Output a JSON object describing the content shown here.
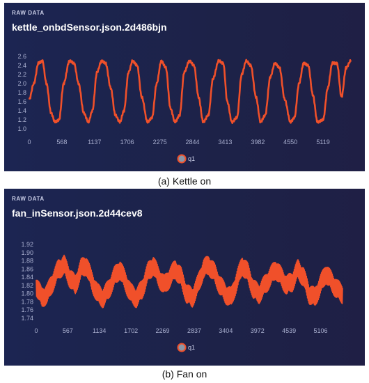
{
  "chart_data": [
    {
      "type": "line",
      "panel_label": "RAW DATA",
      "title": "kettle_onbdSensor.json.2d486bjn",
      "caption": "(a) Kettle on",
      "x_ticks": [
        "0",
        "568",
        "1137",
        "1706",
        "2275",
        "2844",
        "3413",
        "3982",
        "4550",
        "5119"
      ],
      "y_ticks": [
        "2.6",
        "2.4",
        "2.2",
        "2.0",
        "1.8",
        "1.6",
        "1.4",
        "1.2",
        "1.0"
      ],
      "xlim": [
        0,
        5700
      ],
      "ylim": [
        1.0,
        2.6
      ],
      "grid": false,
      "legend_position": "bottom-center",
      "line_color": "#f0502a",
      "series": [
        {
          "name": "q1",
          "x": [
            0,
            80,
            160,
            230,
            300,
            380,
            450,
            520,
            600,
            700,
            780,
            860,
            950,
            1030,
            1100,
            1180,
            1260,
            1330,
            1420,
            1500,
            1580,
            1650,
            1730,
            1800,
            1880,
            1960,
            2060,
            2140,
            2220,
            2300,
            2380,
            2460,
            2540,
            2620,
            2700,
            2790,
            2870,
            2950,
            3030,
            3120,
            3200,
            3300,
            3380,
            3450,
            3530,
            3620,
            3700,
            3780,
            3860,
            3950,
            4030,
            4110,
            4200,
            4280,
            4360,
            4450,
            4550,
            4620,
            4700,
            4780,
            4860,
            4940,
            5020,
            5120,
            5200,
            5280,
            5360,
            5440,
            5520,
            5600
          ],
          "y": [
            1.65,
            2.0,
            2.45,
            2.5,
            2.0,
            1.35,
            1.15,
            1.2,
            2.0,
            2.5,
            2.45,
            2.0,
            1.35,
            1.15,
            1.4,
            2.25,
            2.5,
            2.45,
            1.9,
            1.3,
            1.15,
            1.4,
            2.25,
            2.5,
            2.4,
            1.7,
            1.15,
            1.25,
            2.0,
            2.5,
            2.35,
            1.45,
            1.15,
            1.3,
            2.25,
            2.5,
            2.4,
            1.7,
            1.15,
            1.3,
            2.1,
            2.5,
            2.45,
            1.6,
            1.15,
            1.25,
            2.2,
            2.5,
            2.4,
            1.7,
            1.15,
            1.3,
            2.15,
            2.45,
            2.35,
            1.65,
            1.15,
            1.25,
            2.0,
            2.45,
            2.4,
            1.75,
            1.15,
            1.2,
            1.9,
            2.45,
            2.45,
            1.7,
            2.35,
            2.5
          ]
        }
      ]
    },
    {
      "type": "line",
      "panel_label": "RAW DATA",
      "title": "fan_inSensor.json.2d44cev8",
      "caption": "(b) Fan on",
      "x_ticks": [
        "0",
        "567",
        "1134",
        "1702",
        "2269",
        "2837",
        "3404",
        "3972",
        "4539",
        "5106"
      ],
      "y_ticks": [
        "1.92",
        "1.90",
        "1.88",
        "1.86",
        "1.84",
        "1.82",
        "1.80",
        "1.78",
        "1.76",
        "1.74"
      ],
      "xlim": [
        0,
        5600
      ],
      "ylim": [
        1.74,
        1.92
      ],
      "grid": false,
      "legend_position": "bottom-center",
      "line_color": "#f0502a",
      "series": [
        {
          "name": "q1",
          "x": [
            0,
            100,
            200,
            300,
            400,
            500,
            600,
            700,
            800,
            900,
            1000,
            1100,
            1200,
            1300,
            1400,
            1500,
            1600,
            1700,
            1800,
            1900,
            2000,
            2100,
            2200,
            2300,
            2400,
            2500,
            2600,
            2700,
            2800,
            2900,
            3000,
            3100,
            3200,
            3300,
            3400,
            3500,
            3600,
            3700,
            3800,
            3900,
            4000,
            4100,
            4200,
            4300,
            4400,
            4500,
            4600,
            4700,
            4800,
            4900,
            5000,
            5100,
            5200,
            5300,
            5400,
            5500
          ],
          "y": [
            1.82,
            1.79,
            1.8,
            1.83,
            1.86,
            1.87,
            1.84,
            1.82,
            1.86,
            1.87,
            1.83,
            1.8,
            1.79,
            1.81,
            1.84,
            1.86,
            1.83,
            1.8,
            1.79,
            1.81,
            1.85,
            1.87,
            1.84,
            1.82,
            1.84,
            1.86,
            1.84,
            1.8,
            1.79,
            1.82,
            1.86,
            1.87,
            1.85,
            1.82,
            1.8,
            1.79,
            1.83,
            1.87,
            1.85,
            1.81,
            1.8,
            1.82,
            1.84,
            1.86,
            1.84,
            1.82,
            1.83,
            1.86,
            1.84,
            1.8,
            1.79,
            1.82,
            1.85,
            1.83,
            1.81,
            1.8
          ],
          "noise_amplitude": 0.025
        }
      ]
    }
  ]
}
